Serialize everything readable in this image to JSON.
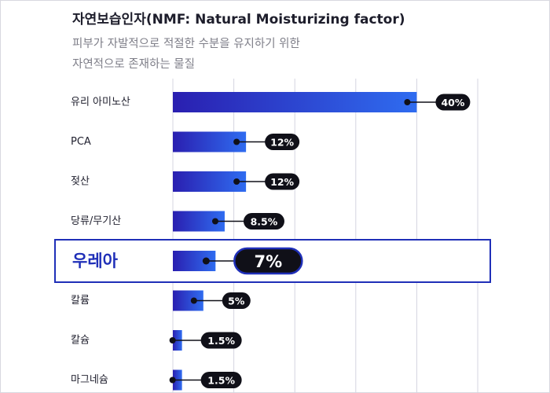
{
  "header": {
    "title": "자연보습인자(NMF: Natural Moisturizing factor)",
    "subtitle_line1": "피부가 자발적으로 적절한 수분을 유지하기 위한",
    "subtitle_line2": "자연적으로 존재하는 물질"
  },
  "chart_data": {
    "type": "bar",
    "orientation": "horizontal",
    "categories": [
      "유리 아미노산",
      "PCA",
      "젖산",
      "당류/무기산",
      "우레아",
      "칼륨",
      "칼슘",
      "마그네슘"
    ],
    "values": [
      40,
      12,
      12,
      8.5,
      7,
      5,
      1.5,
      1.5
    ],
    "value_labels": [
      "40%",
      "12%",
      "12%",
      "8.5%",
      "7%",
      "5%",
      "1.5%",
      "1.5%"
    ],
    "highlight_category": "우레아",
    "xlim": [
      0,
      50
    ],
    "grid": true,
    "colors": {
      "bar_start": "#2a1fb0",
      "bar_end": "#2f6cf0",
      "label_bg": "#101018",
      "highlight": "#1f2fb8",
      "grid": "#d4d4e0"
    }
  }
}
